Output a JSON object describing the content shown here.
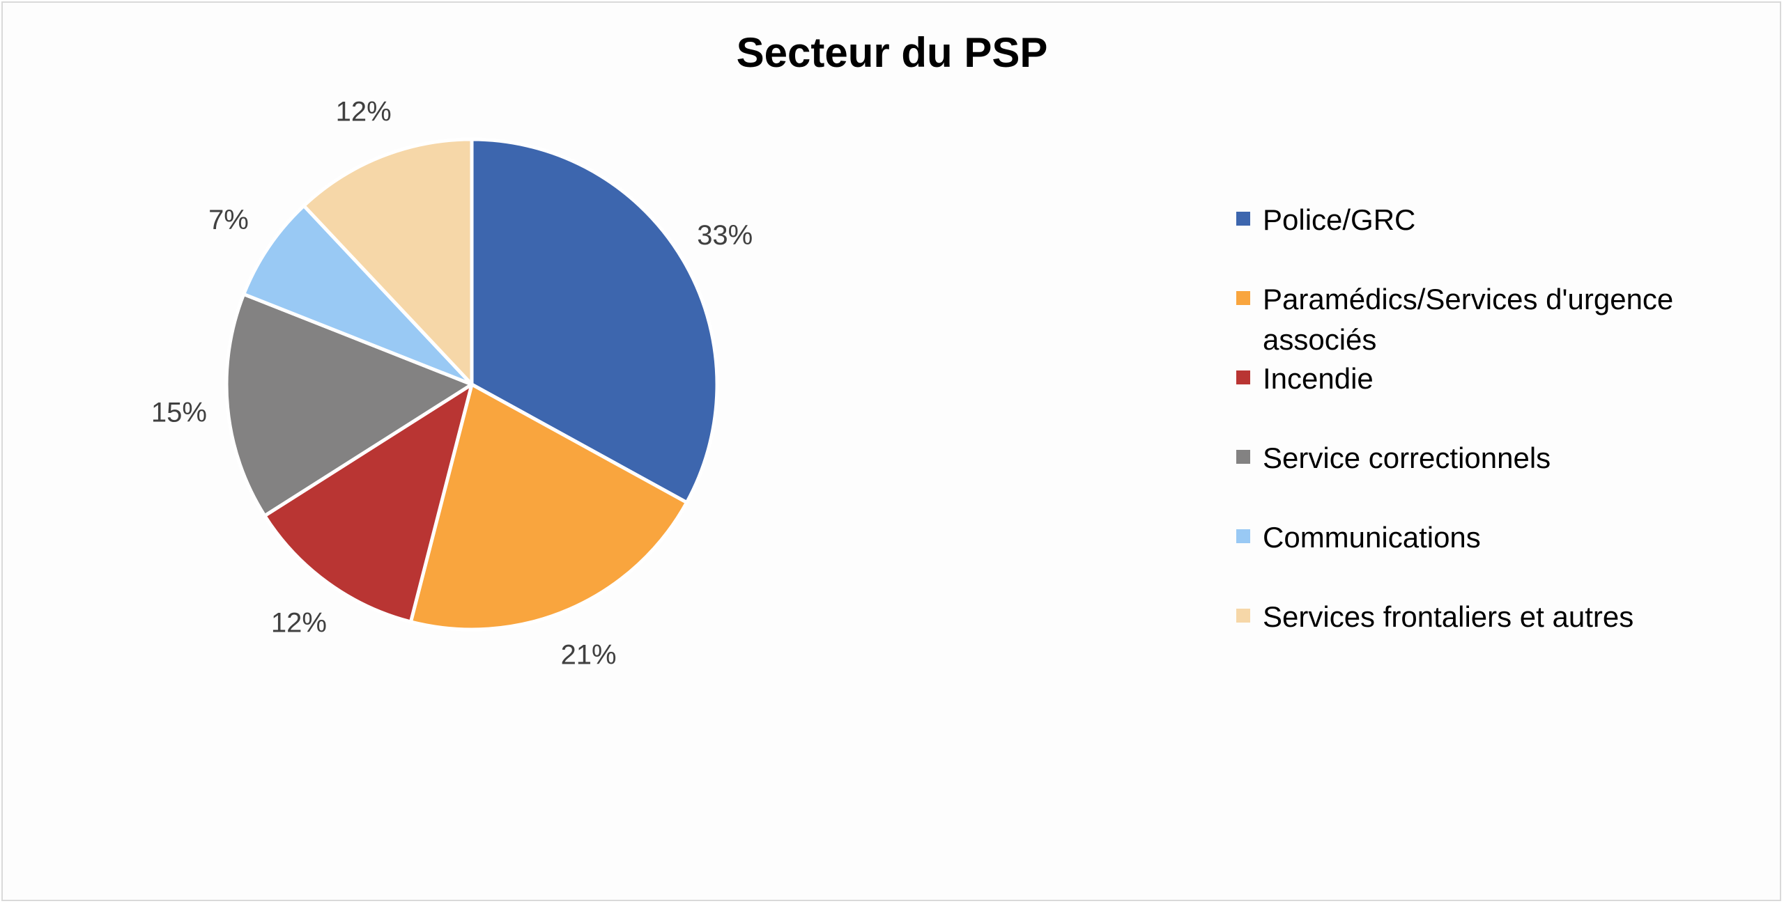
{
  "chart_data": {
    "type": "pie",
    "title": "Secteur du PSP",
    "categories": [
      "Police/GRC",
      "Paramédics/Services d'urgence associés",
      "Incendie",
      "Service correctionnels",
      "Communications",
      "Services frontaliers et autres"
    ],
    "values": [
      33,
      21,
      12,
      15,
      7,
      12
    ],
    "data_labels": [
      "33%",
      "21%",
      "12%",
      "15%",
      "7%",
      "12%"
    ],
    "colors": [
      "#3d66ae",
      "#f9a53e",
      "#b93533",
      "#838282",
      "#99c9f4",
      "#f6d7a8"
    ],
    "legend": {
      "position": "right",
      "entries": [
        {
          "lines": [
            "Police/GRC"
          ]
        },
        {
          "lines": [
            "Paramédics/Services d'urgence",
            "associés"
          ]
        },
        {
          "lines": [
            "Incendie"
          ]
        },
        {
          "lines": [
            "Service correctionnels"
          ]
        },
        {
          "lines": [
            "Communications"
          ]
        },
        {
          "lines": [
            "Services frontaliers et autres"
          ]
        }
      ]
    }
  }
}
